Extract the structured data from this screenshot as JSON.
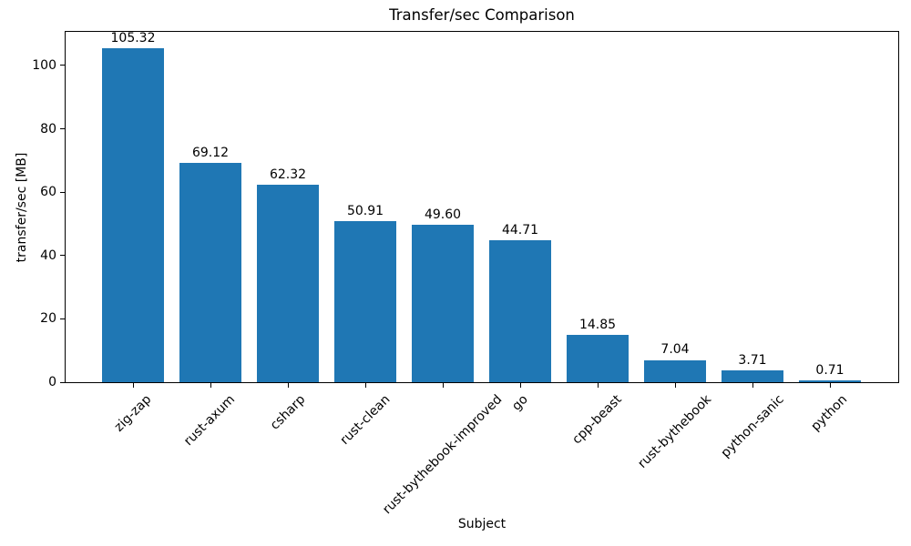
{
  "chart_data": {
    "type": "bar",
    "title": "Transfer/sec Comparison",
    "xlabel": "Subject",
    "ylabel": "transfer/sec [MB]",
    "categories": [
      "zig-zap",
      "rust-axum",
      "csharp",
      "rust-clean",
      "rust-bythebook-improved",
      "go",
      "cpp-beast",
      "rust-bythebook",
      "python-sanic",
      "python"
    ],
    "values": [
      105.32,
      69.12,
      62.32,
      50.91,
      49.6,
      44.71,
      14.85,
      7.04,
      3.71,
      0.71
    ],
    "value_labels": [
      "105.32",
      "69.12",
      "62.32",
      "50.91",
      "49.60",
      "44.71",
      "14.85",
      "7.04",
      "3.71",
      "0.71"
    ],
    "yticks": [
      0,
      20,
      40,
      60,
      80,
      100
    ],
    "ylim": [
      0,
      110.6
    ],
    "x_tick_rotation_deg": 45,
    "grid": false,
    "legend": "none",
    "bar_color": "#1f77b4",
    "axis_color": "#000000",
    "text_color": "#000000",
    "background_color": "#ffffff"
  }
}
